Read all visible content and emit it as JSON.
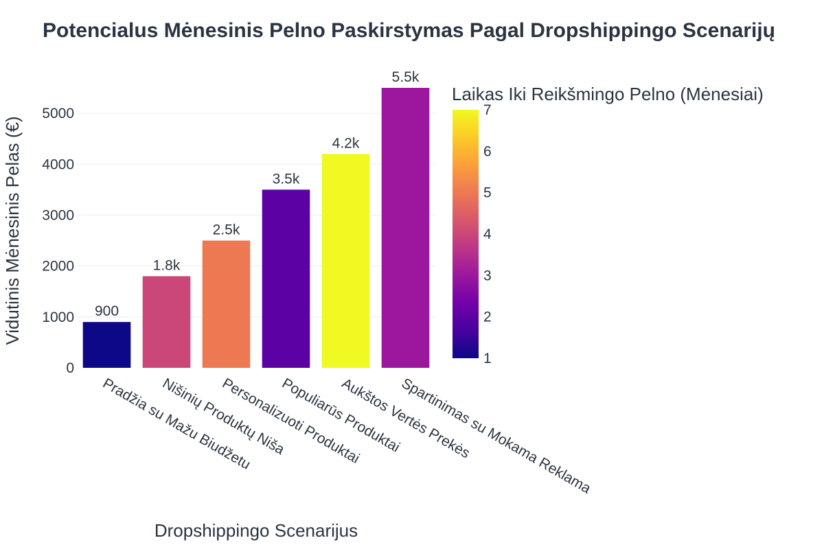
{
  "chart_data": {
    "type": "bar",
    "title": "Potencialus Mėnesinis Pelno Paskirstymas Pagal Dropshippingo Scenarijų",
    "xlabel": "Dropshippingo Scenarijus",
    "ylabel": "Vidutinis Mėnesinis Pelas (€)",
    "categories": [
      "Pradžia su Mažu Biudžetu",
      "Nišinių Produktų Niša",
      "Personalizuoti Produktai",
      "Populiarūs Produktai",
      "Aukštos Vertės Prekės",
      "Spartinimas su Mokama Reklama"
    ],
    "values": [
      900,
      1800,
      2500,
      3500,
      4200,
      5500
    ],
    "value_labels": [
      "900",
      "1.8k",
      "2.5k",
      "3.5k",
      "4.2k",
      "5.5k"
    ],
    "color_values": [
      1,
      4,
      5,
      2,
      7,
      3
    ],
    "ylim": [
      0,
      5500
    ],
    "yticks": [
      0,
      1000,
      2000,
      3000,
      4000,
      5000
    ],
    "grid": true,
    "colorbar": {
      "title": "Laikas Iki Reikšmingo Pelno (Mėnesiai)",
      "min": 1,
      "max": 7,
      "ticks": [
        1,
        2,
        3,
        4,
        5,
        6,
        7
      ],
      "colorscale": [
        "#0d0887",
        "#46039f",
        "#7201a8",
        "#9c179e",
        "#bd3786",
        "#d8576b",
        "#ed7953",
        "#fb9f3a",
        "#fdca26",
        "#f0f921"
      ]
    }
  }
}
